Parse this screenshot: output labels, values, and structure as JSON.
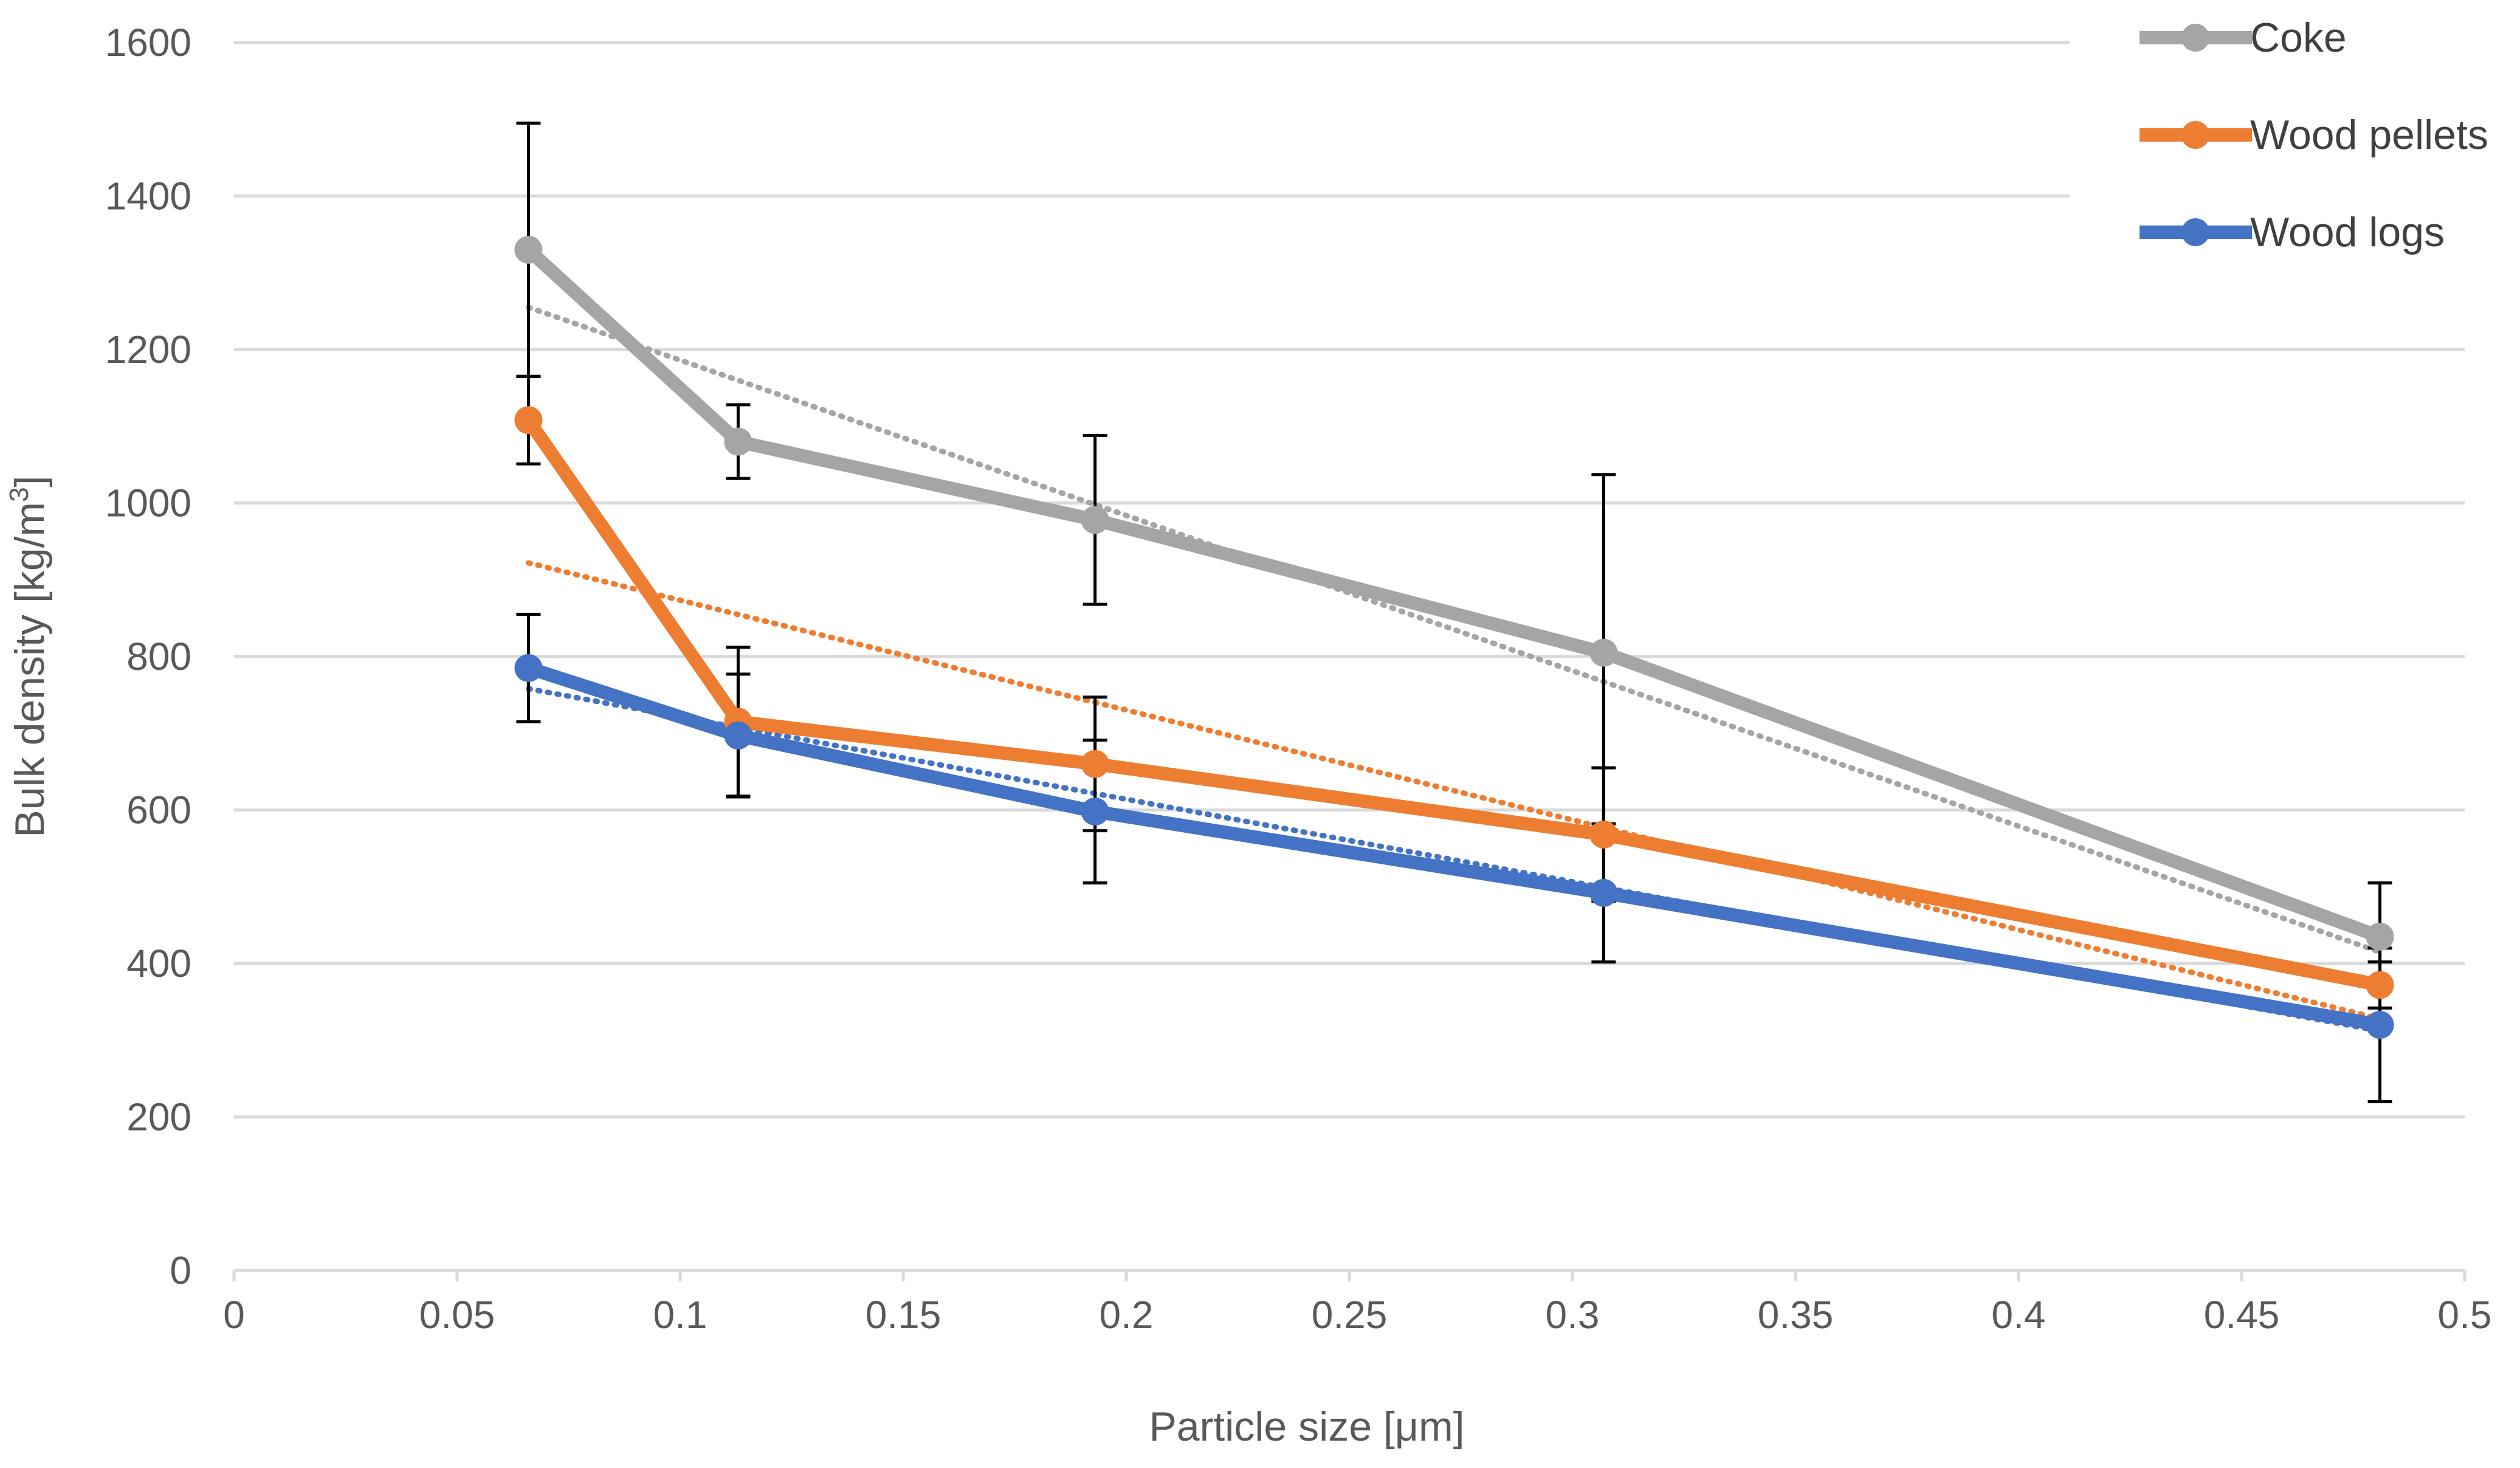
{
  "chart_data": {
    "type": "line",
    "title": "",
    "xlabel": "Particle size [μm]",
    "ylabel_main": "Bulk density [kg/m",
    "ylabel_sup": "3",
    "ylabel_close": "]",
    "xlim": [
      0,
      0.5
    ],
    "ylim": [
      0,
      1600
    ],
    "x_ticks": [
      "0",
      "0.05",
      "0.1",
      "0.15",
      "0.2",
      "0.25",
      "0.3",
      "0.35",
      "0.4",
      "0.45",
      "0.5"
    ],
    "y_ticks": [
      "0",
      "200",
      "400",
      "600",
      "800",
      "1000",
      "1200",
      "1400",
      "1600"
    ],
    "grid": "horizontal",
    "legend_position": "top-right",
    "series": [
      {
        "name": "Coke",
        "color": "#A5A5A5",
        "points": [
          {
            "x": 0.066,
            "y": 1330,
            "err": 165
          },
          {
            "x": 0.113,
            "y": 1080,
            "err": 48
          },
          {
            "x": 0.193,
            "y": 978,
            "err": 110
          },
          {
            "x": 0.307,
            "y": 805,
            "err": 232
          },
          {
            "x": 0.481,
            "y": 435,
            "err": 70
          }
        ],
        "trend": [
          [
            0.066,
            1255
          ],
          [
            0.481,
            415
          ]
        ]
      },
      {
        "name": "Wood pellets",
        "color": "#ED7D31",
        "points": [
          {
            "x": 0.066,
            "y": 1108,
            "err": 57
          },
          {
            "x": 0.113,
            "y": 715,
            "err": 97
          },
          {
            "x": 0.193,
            "y": 660,
            "err": 87
          },
          {
            "x": 0.307,
            "y": 568,
            "err": 87
          },
          {
            "x": 0.481,
            "y": 372,
            "err": 30
          }
        ],
        "trend": [
          [
            0.066,
            922
          ],
          [
            0.481,
            328
          ]
        ]
      },
      {
        "name": "Wood logs",
        "color": "#4472C4",
        "points": [
          {
            "x": 0.066,
            "y": 785,
            "err": 70
          },
          {
            "x": 0.113,
            "y": 697,
            "err": 80
          },
          {
            "x": 0.193,
            "y": 598,
            "err": 93
          },
          {
            "x": 0.307,
            "y": 492,
            "err": 90
          },
          {
            "x": 0.481,
            "y": 320,
            "err": 100
          }
        ],
        "trend": [
          [
            0.066,
            758
          ],
          [
            0.481,
            312
          ]
        ]
      }
    ]
  }
}
